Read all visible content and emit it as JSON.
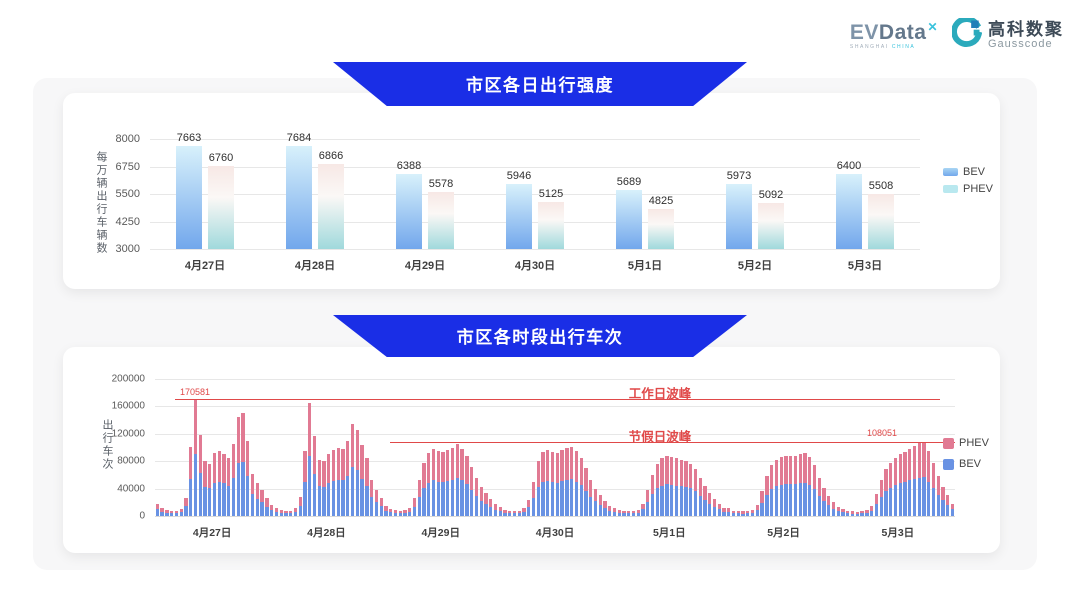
{
  "header": {
    "evdata_logo": {
      "ev": "EV",
      "data": "Data",
      "sup": "✕",
      "tagline_left": "SHANGHAI",
      "tagline_right": "CHINA"
    },
    "gausscode_logo": {
      "cn": "高科数聚",
      "en": "Gausscode"
    }
  },
  "colors": {
    "banner_blue": "#1a2ee6",
    "panel_bg": "#f7f7f8",
    "bev_blue": "#6992e3",
    "phev_pink": "#e17a93",
    "annotation_red": "#e04949",
    "bev_gradient_top": "#d8f1fb",
    "bev_gradient_bottom": "#72a7ec",
    "phev_gradient_top": "#f7e8e5",
    "phev_gradient_bottom": "#a0d9dc"
  },
  "chart_data": [
    {
      "type": "bar",
      "title": "市区各日出行强度",
      "ylabel": "每万辆出行车辆数",
      "categories": [
        "4月27日",
        "4月28日",
        "4月29日",
        "4月30日",
        "5月1日",
        "5月2日",
        "5月3日"
      ],
      "series": [
        {
          "name": "BEV",
          "values": [
            7663,
            7684,
            6388,
            5946,
            5689,
            5973,
            6400
          ]
        },
        {
          "name": "PHEV",
          "values": [
            6760,
            6866,
            5578,
            5125,
            4825,
            5092,
            5508
          ]
        }
      ],
      "yticks": [
        8000,
        6750,
        5500,
        4250,
        3000
      ],
      "ylim": [
        3000,
        8000
      ],
      "grid": true,
      "legend_position": "right",
      "legend": [
        "BEV",
        "PHEV"
      ]
    },
    {
      "type": "bar",
      "stacked": true,
      "title": "市区各时段出行车次",
      "ylabel": "出行车次",
      "x_unit": "hour-of-day, 24 bars per day",
      "categories": [
        "4月27日",
        "4月28日",
        "4月29日",
        "4月30日",
        "5月1日",
        "5月2日",
        "5月3日"
      ],
      "totals_by_day": [
        [
          18000,
          12000,
          9500,
          8000,
          7500,
          10500,
          27000,
          101000,
          170581,
          119000,
          80000,
          76000,
          92000,
          95000,
          91000,
          84000,
          105000,
          145000,
          150000,
          110000,
          62000,
          48000,
          38000,
          26000
        ],
        [
          16000,
          11000,
          9000,
          8000,
          8000,
          11000,
          28000,
          95000,
          165000,
          117000,
          82000,
          81000,
          90000,
          96000,
          100000,
          98000,
          110000,
          134000,
          126000,
          103000,
          84000,
          52000,
          38000,
          27000
        ],
        [
          14000,
          10000,
          8500,
          8000,
          8500,
          12000,
          26000,
          52000,
          78000,
          92000,
          98000,
          95000,
          93000,
          97000,
          100000,
          105000,
          98000,
          88000,
          72000,
          55000,
          42000,
          33000,
          25000,
          17000
        ],
        [
          13000,
          9500,
          8000,
          7500,
          8000,
          11000,
          24000,
          50000,
          80000,
          93000,
          97000,
          94000,
          92000,
          96000,
          99000,
          101000,
          95000,
          85000,
          70000,
          52000,
          40000,
          30000,
          22000,
          15000
        ],
        [
          12000,
          8500,
          7500,
          7000,
          7500,
          9500,
          18000,
          38000,
          60000,
          76000,
          84000,
          87000,
          86000,
          84000,
          82000,
          80000,
          76000,
          68000,
          56000,
          44000,
          33000,
          25000,
          18000,
          12000
        ],
        [
          11000,
          8000,
          7000,
          6800,
          7200,
          9000,
          16000,
          36000,
          58000,
          74000,
          82000,
          86000,
          88000,
          87000,
          88000,
          90000,
          92000,
          86000,
          74000,
          56000,
          41000,
          29000,
          20000,
          13000
        ],
        [
          10000,
          7500,
          6800,
          6500,
          7000,
          8500,
          15000,
          32000,
          52000,
          68000,
          78000,
          85000,
          90000,
          94000,
          98000,
          102000,
          106000,
          108051,
          95000,
          78000,
          58000,
          43000,
          30000,
          18000
        ]
      ],
      "bev_fraction_estimate": 0.53,
      "series_note": "stacked: BEV (blue, ≈53% of each bar) on bottom, PHEV (pink) on top",
      "yticks": [
        200000,
        160000,
        120000,
        80000,
        40000,
        0
      ],
      "ylim": [
        0,
        200000
      ],
      "grid": true,
      "legend": [
        "PHEV",
        "BEV"
      ],
      "annotations": [
        {
          "label": "工作日波峰",
          "value": 170581,
          "value_label": "170581"
        },
        {
          "label": "节假日波峰",
          "value": 108051,
          "value_label": "108051"
        }
      ]
    }
  ]
}
